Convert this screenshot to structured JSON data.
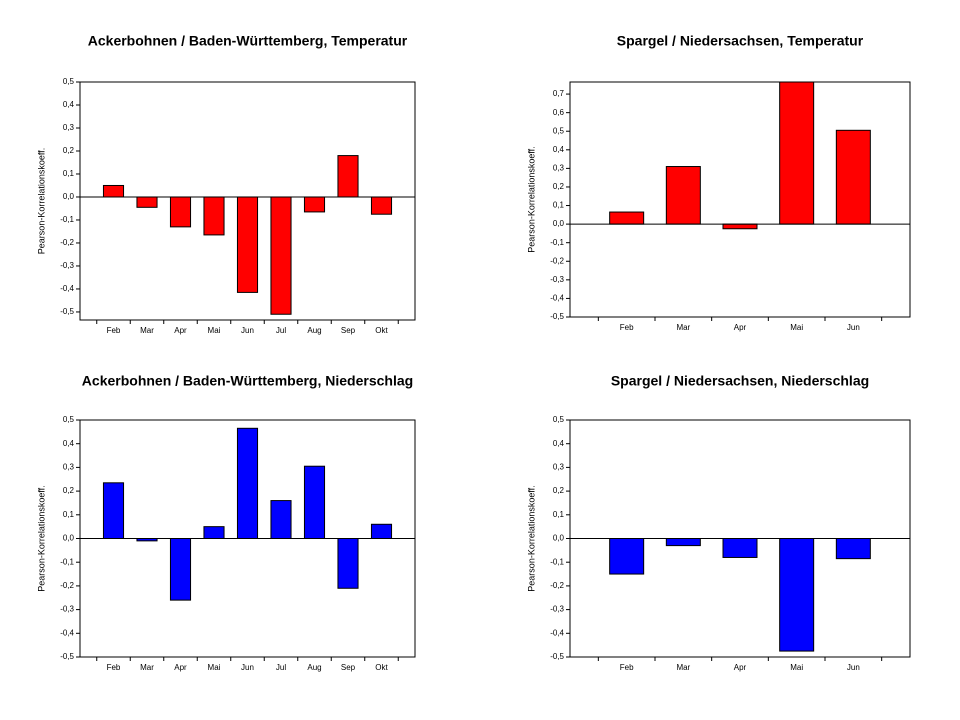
{
  "chart_data": [
    {
      "type": "bar",
      "title": "Ackerbohnen / Baden-Württemberg, Temperatur",
      "y_label": "Pearson-Korrelationskoeff.",
      "categories": [
        "Feb",
        "Mar",
        "Apr",
        "Mai",
        "Jun",
        "Jul",
        "Aug",
        "Sep",
        "Okt"
      ],
      "values": [
        0.05,
        -0.045,
        -0.13,
        -0.165,
        -0.415,
        -0.51,
        -0.065,
        0.18,
        -0.075
      ],
      "color": "#ff0000",
      "ylim": [
        -0.535,
        0.5
      ],
      "yticks": [
        {
          "value": 0.5,
          "label": "0,5"
        },
        {
          "value": 0.4,
          "label": "0,4"
        },
        {
          "value": 0.3,
          "label": "0,3"
        },
        {
          "value": 0.2,
          "label": "0,2"
        },
        {
          "value": 0.1,
          "label": "0,1"
        },
        {
          "value": 0,
          "label": "0,0"
        },
        {
          "value": -0.1,
          "label": "-0,1"
        },
        {
          "value": -0.2,
          "label": "-0,2"
        },
        {
          "value": -0.3,
          "label": "-0,3"
        },
        {
          "value": -0.4,
          "label": "-0,4"
        },
        {
          "value": -0.5,
          "label": "-0,5"
        }
      ]
    },
    {
      "type": "bar",
      "title": "Spargel / Niedersachsen, Temperatur",
      "y_label": "Pearson-Korrelationskoeff.",
      "categories": [
        "Feb",
        "Mar",
        "Apr",
        "Mai",
        "Jun"
      ],
      "values": [
        0.065,
        0.31,
        -0.025,
        0.765,
        0.505
      ],
      "color": "#ff0000",
      "ylim": [
        -0.5,
        0.765
      ],
      "yticks": [
        {
          "value": 0.7,
          "label": "0,7"
        },
        {
          "value": 0.6,
          "label": "0,6"
        },
        {
          "value": 0.5,
          "label": "0,5"
        },
        {
          "value": 0.4,
          "label": "0,4"
        },
        {
          "value": 0.3,
          "label": "0,3"
        },
        {
          "value": 0.2,
          "label": "0,2"
        },
        {
          "value": 0.1,
          "label": "0,1"
        },
        {
          "value": 0,
          "label": "0,0"
        },
        {
          "value": -0.1,
          "label": "-0,1"
        },
        {
          "value": -0.2,
          "label": "-0,2"
        },
        {
          "value": -0.3,
          "label": "-0,3"
        },
        {
          "value": -0.4,
          "label": "-0,4"
        },
        {
          "value": -0.5,
          "label": "-0,5"
        }
      ]
    },
    {
      "type": "bar",
      "title": "Ackerbohnen / Baden-Württemberg, Niederschlag",
      "y_label": "Pearson-Korrelationskoeff.",
      "categories": [
        "Feb",
        "Mar",
        "Apr",
        "Mai",
        "Jun",
        "Jul",
        "Aug",
        "Sep",
        "Okt"
      ],
      "values": [
        0.235,
        -0.01,
        -0.26,
        0.05,
        0.465,
        0.16,
        0.305,
        -0.21,
        0.06
      ],
      "color": "#0000ff",
      "ylim": [
        -0.5,
        0.5
      ],
      "yticks": [
        {
          "value": 0.5,
          "label": "0,5"
        },
        {
          "value": 0.4,
          "label": "0,4"
        },
        {
          "value": 0.3,
          "label": "0,3"
        },
        {
          "value": 0.2,
          "label": "0,2"
        },
        {
          "value": 0.1,
          "label": "0,1"
        },
        {
          "value": 0,
          "label": "0,0"
        },
        {
          "value": -0.1,
          "label": "-0,1"
        },
        {
          "value": -0.2,
          "label": "-0,2"
        },
        {
          "value": -0.3,
          "label": "-0,3"
        },
        {
          "value": -0.4,
          "label": "-0,4"
        },
        {
          "value": -0.5,
          "label": "-0,5"
        }
      ]
    },
    {
      "type": "bar",
      "title": "Spargel / Niedersachsen, Niederschlag",
      "y_label": "Pearson-Korrelationskoeff.",
      "categories": [
        "Feb",
        "Mar",
        "Apr",
        "Mai",
        "Jun"
      ],
      "values": [
        -0.15,
        -0.03,
        -0.08,
        -0.475,
        -0.085
      ],
      "color": "#0000ff",
      "ylim": [
        -0.5,
        0.5
      ],
      "yticks": [
        {
          "value": 0.5,
          "label": "0,5"
        },
        {
          "value": 0.4,
          "label": "0,4"
        },
        {
          "value": 0.3,
          "label": "0,3"
        },
        {
          "value": 0.2,
          "label": "0,2"
        },
        {
          "value": 0.1,
          "label": "0,1"
        },
        {
          "value": 0,
          "label": "0,0"
        },
        {
          "value": -0.1,
          "label": "-0,1"
        },
        {
          "value": -0.2,
          "label": "-0,2"
        },
        {
          "value": -0.3,
          "label": "-0,3"
        },
        {
          "value": -0.4,
          "label": "-0,4"
        },
        {
          "value": -0.5,
          "label": "-0,5"
        }
      ]
    }
  ]
}
